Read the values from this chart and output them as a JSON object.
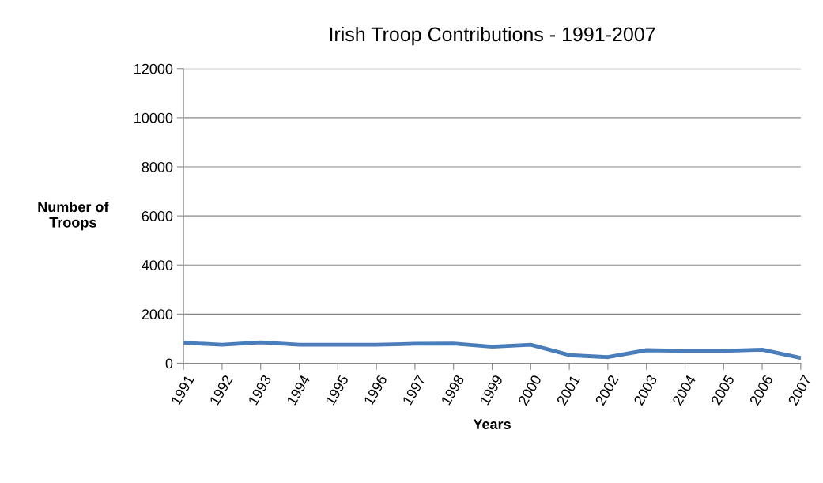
{
  "chart_data": {
    "type": "line",
    "title": "Irish Troop Contributions - 1991-2007",
    "xlabel": "Years",
    "ylabel": "Number of\nTroops",
    "categories": [
      "1991",
      "1992",
      "1993",
      "1994",
      "1995",
      "1996",
      "1997",
      "1998",
      "1999",
      "2000",
      "2001",
      "2002",
      "2003",
      "2004",
      "2005",
      "2006",
      "2007"
    ],
    "series": [
      {
        "color": "#4a7ebb",
        "values": [
          830,
          750,
          850,
          750,
          750,
          750,
          790,
          800,
          670,
          750,
          330,
          250,
          530,
          500,
          500,
          550,
          220
        ]
      }
    ],
    "ylim": [
      0,
      12000
    ],
    "yticks": [
      0,
      2000,
      4000,
      6000,
      8000,
      10000,
      12000
    ],
    "grid": "y",
    "legend": false,
    "marker": "none",
    "line_style": "solid"
  }
}
